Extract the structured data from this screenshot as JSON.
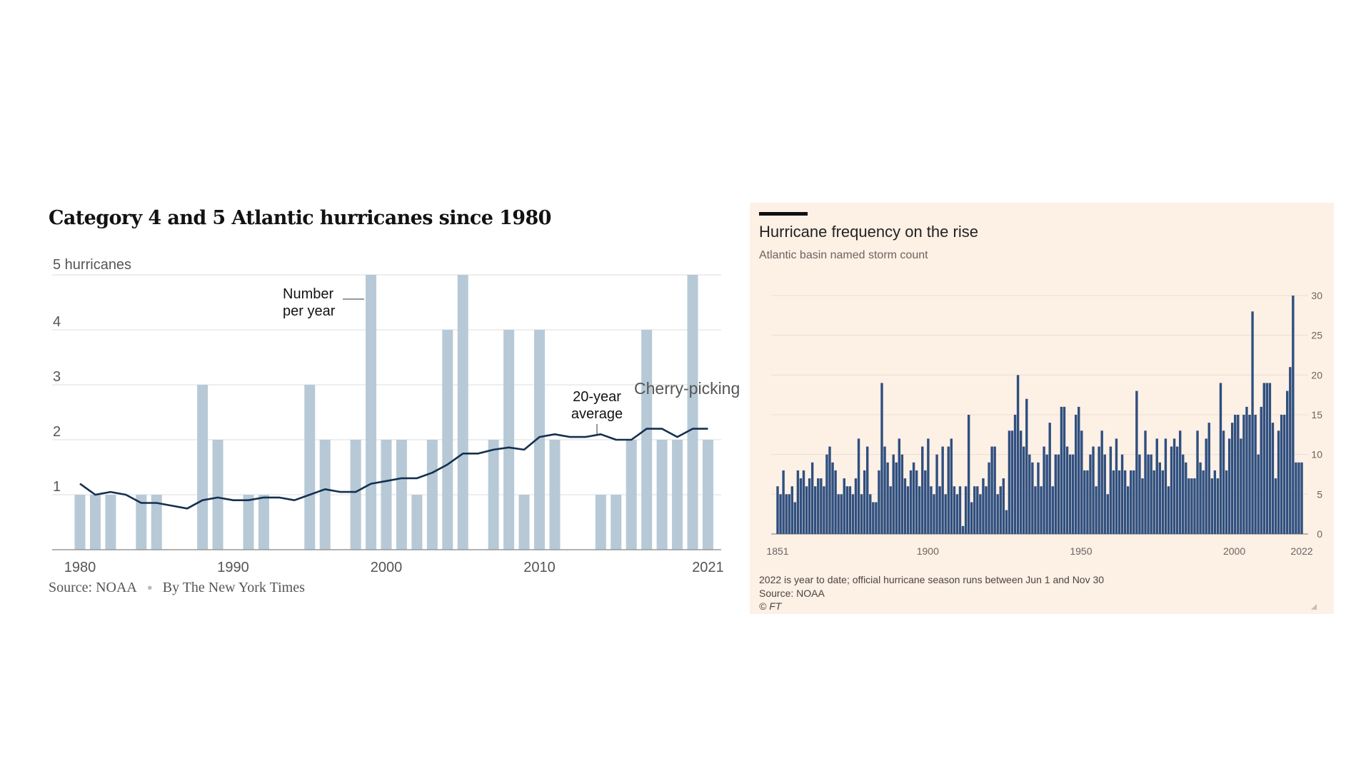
{
  "chart_data": [
    {
      "type": "bar",
      "title": "Category 4 and 5 Atlantic hurricanes since 1980",
      "ylabel": "5 hurricanes",
      "ytick_labels": [
        "1",
        "2",
        "3",
        "4"
      ],
      "ylim": [
        0,
        5
      ],
      "xtick_labels": [
        "1980",
        "1990",
        "2000",
        "2010",
        "2021"
      ],
      "xtick_years": [
        1980,
        1990,
        2000,
        2010,
        2021
      ],
      "grid": true,
      "x": [
        1980,
        1981,
        1982,
        1983,
        1984,
        1985,
        1986,
        1987,
        1988,
        1989,
        1990,
        1991,
        1992,
        1993,
        1994,
        1995,
        1996,
        1997,
        1998,
        1999,
        2000,
        2001,
        2002,
        2003,
        2004,
        2005,
        2006,
        2007,
        2008,
        2009,
        2010,
        2011,
        2012,
        2013,
        2014,
        2015,
        2016,
        2017,
        2018,
        2019,
        2020,
        2021
      ],
      "series": [
        {
          "name": "Number per year",
          "type": "bar",
          "values": [
            1,
            1,
            1,
            0,
            1,
            1,
            0,
            0,
            3,
            2,
            0,
            1,
            1,
            0,
            0,
            3,
            2,
            0,
            2,
            5,
            2,
            2,
            1,
            2,
            4,
            5,
            0,
            2,
            4,
            1,
            4,
            2,
            0,
            0,
            1,
            1,
            2,
            4,
            2,
            2,
            5,
            2
          ]
        },
        {
          "name": "20-year average",
          "type": "line",
          "values": [
            1.2,
            1.0,
            1.05,
            1.0,
            0.85,
            0.85,
            0.8,
            0.75,
            0.9,
            0.95,
            0.9,
            0.9,
            0.95,
            0.95,
            0.9,
            1.0,
            1.1,
            1.05,
            1.05,
            1.2,
            1.25,
            1.3,
            1.3,
            1.4,
            1.55,
            1.75,
            1.75,
            1.82,
            1.86,
            1.82,
            2.05,
            2.1,
            2.05,
            2.05,
            2.1,
            2.0,
            2.0,
            2.2,
            2.2,
            2.05,
            2.2,
            2.2
          ]
        }
      ],
      "annotations": {
        "bars_label": "Number per year",
        "line_label": "20-year average",
        "overlay": "Cherry-picking"
      },
      "source": "Source: NOAA",
      "byline": "By The New York Times"
    },
    {
      "type": "bar",
      "title": "Hurricane frequency on the rise",
      "subtitle": "Atlantic basin named storm count",
      "ylim": [
        0,
        30
      ],
      "ytick_values": [
        0,
        5,
        10,
        15,
        20,
        25,
        30
      ],
      "ytick_labels": [
        "0",
        "5",
        "10",
        "15",
        "20",
        "25",
        "30"
      ],
      "xtick_labels": [
        "1851",
        "1900",
        "1950",
        "2000",
        "2022"
      ],
      "xtick_years": [
        1851,
        1900,
        1950,
        2000,
        2022
      ],
      "x_start": 1851,
      "x_end": 2022,
      "grid": true,
      "values": [
        6,
        5,
        8,
        5,
        5,
        6,
        4,
        8,
        7,
        8,
        6,
        7,
        9,
        6,
        7,
        7,
        6,
        10,
        11,
        9,
        8,
        5,
        5,
        7,
        6,
        6,
        5,
        7,
        12,
        5,
        8,
        11,
        5,
        4,
        4,
        8,
        19,
        11,
        9,
        6,
        10,
        9,
        12,
        10,
        7,
        6,
        8,
        9,
        8,
        6,
        11,
        8,
        12,
        6,
        5,
        10,
        6,
        11,
        5,
        11,
        12,
        6,
        5,
        6,
        1,
        6,
        15,
        4,
        6,
        6,
        5,
        7,
        6,
        9,
        11,
        11,
        5,
        6,
        7,
        3,
        13,
        13,
        15,
        20,
        13,
        11,
        17,
        10,
        9,
        6,
        9,
        6,
        11,
        10,
        14,
        6,
        10,
        10,
        16,
        16,
        11,
        10,
        10,
        15,
        16,
        13,
        8,
        8,
        10,
        11,
        6,
        11,
        13,
        10,
        5,
        11,
        8,
        12,
        8,
        10,
        8,
        6,
        8,
        8,
        18,
        10,
        7,
        13,
        10,
        10,
        8,
        12,
        9,
        8,
        12,
        6,
        11,
        12,
        11,
        13,
        10,
        9,
        7,
        7,
        7,
        13,
        9,
        8,
        12,
        14,
        7,
        8,
        7,
        19,
        13,
        8,
        12,
        14,
        15,
        15,
        12,
        15,
        16,
        15,
        28,
        15,
        10,
        16,
        19,
        19,
        19,
        14,
        7,
        13,
        15,
        15,
        18,
        21,
        30,
        9,
        9,
        9
      ],
      "footnote": "2022 is year to date; official hurricane season runs between Jun 1 and Nov 30",
      "source": "Source: NOAA",
      "copyright": "© FT"
    }
  ]
}
